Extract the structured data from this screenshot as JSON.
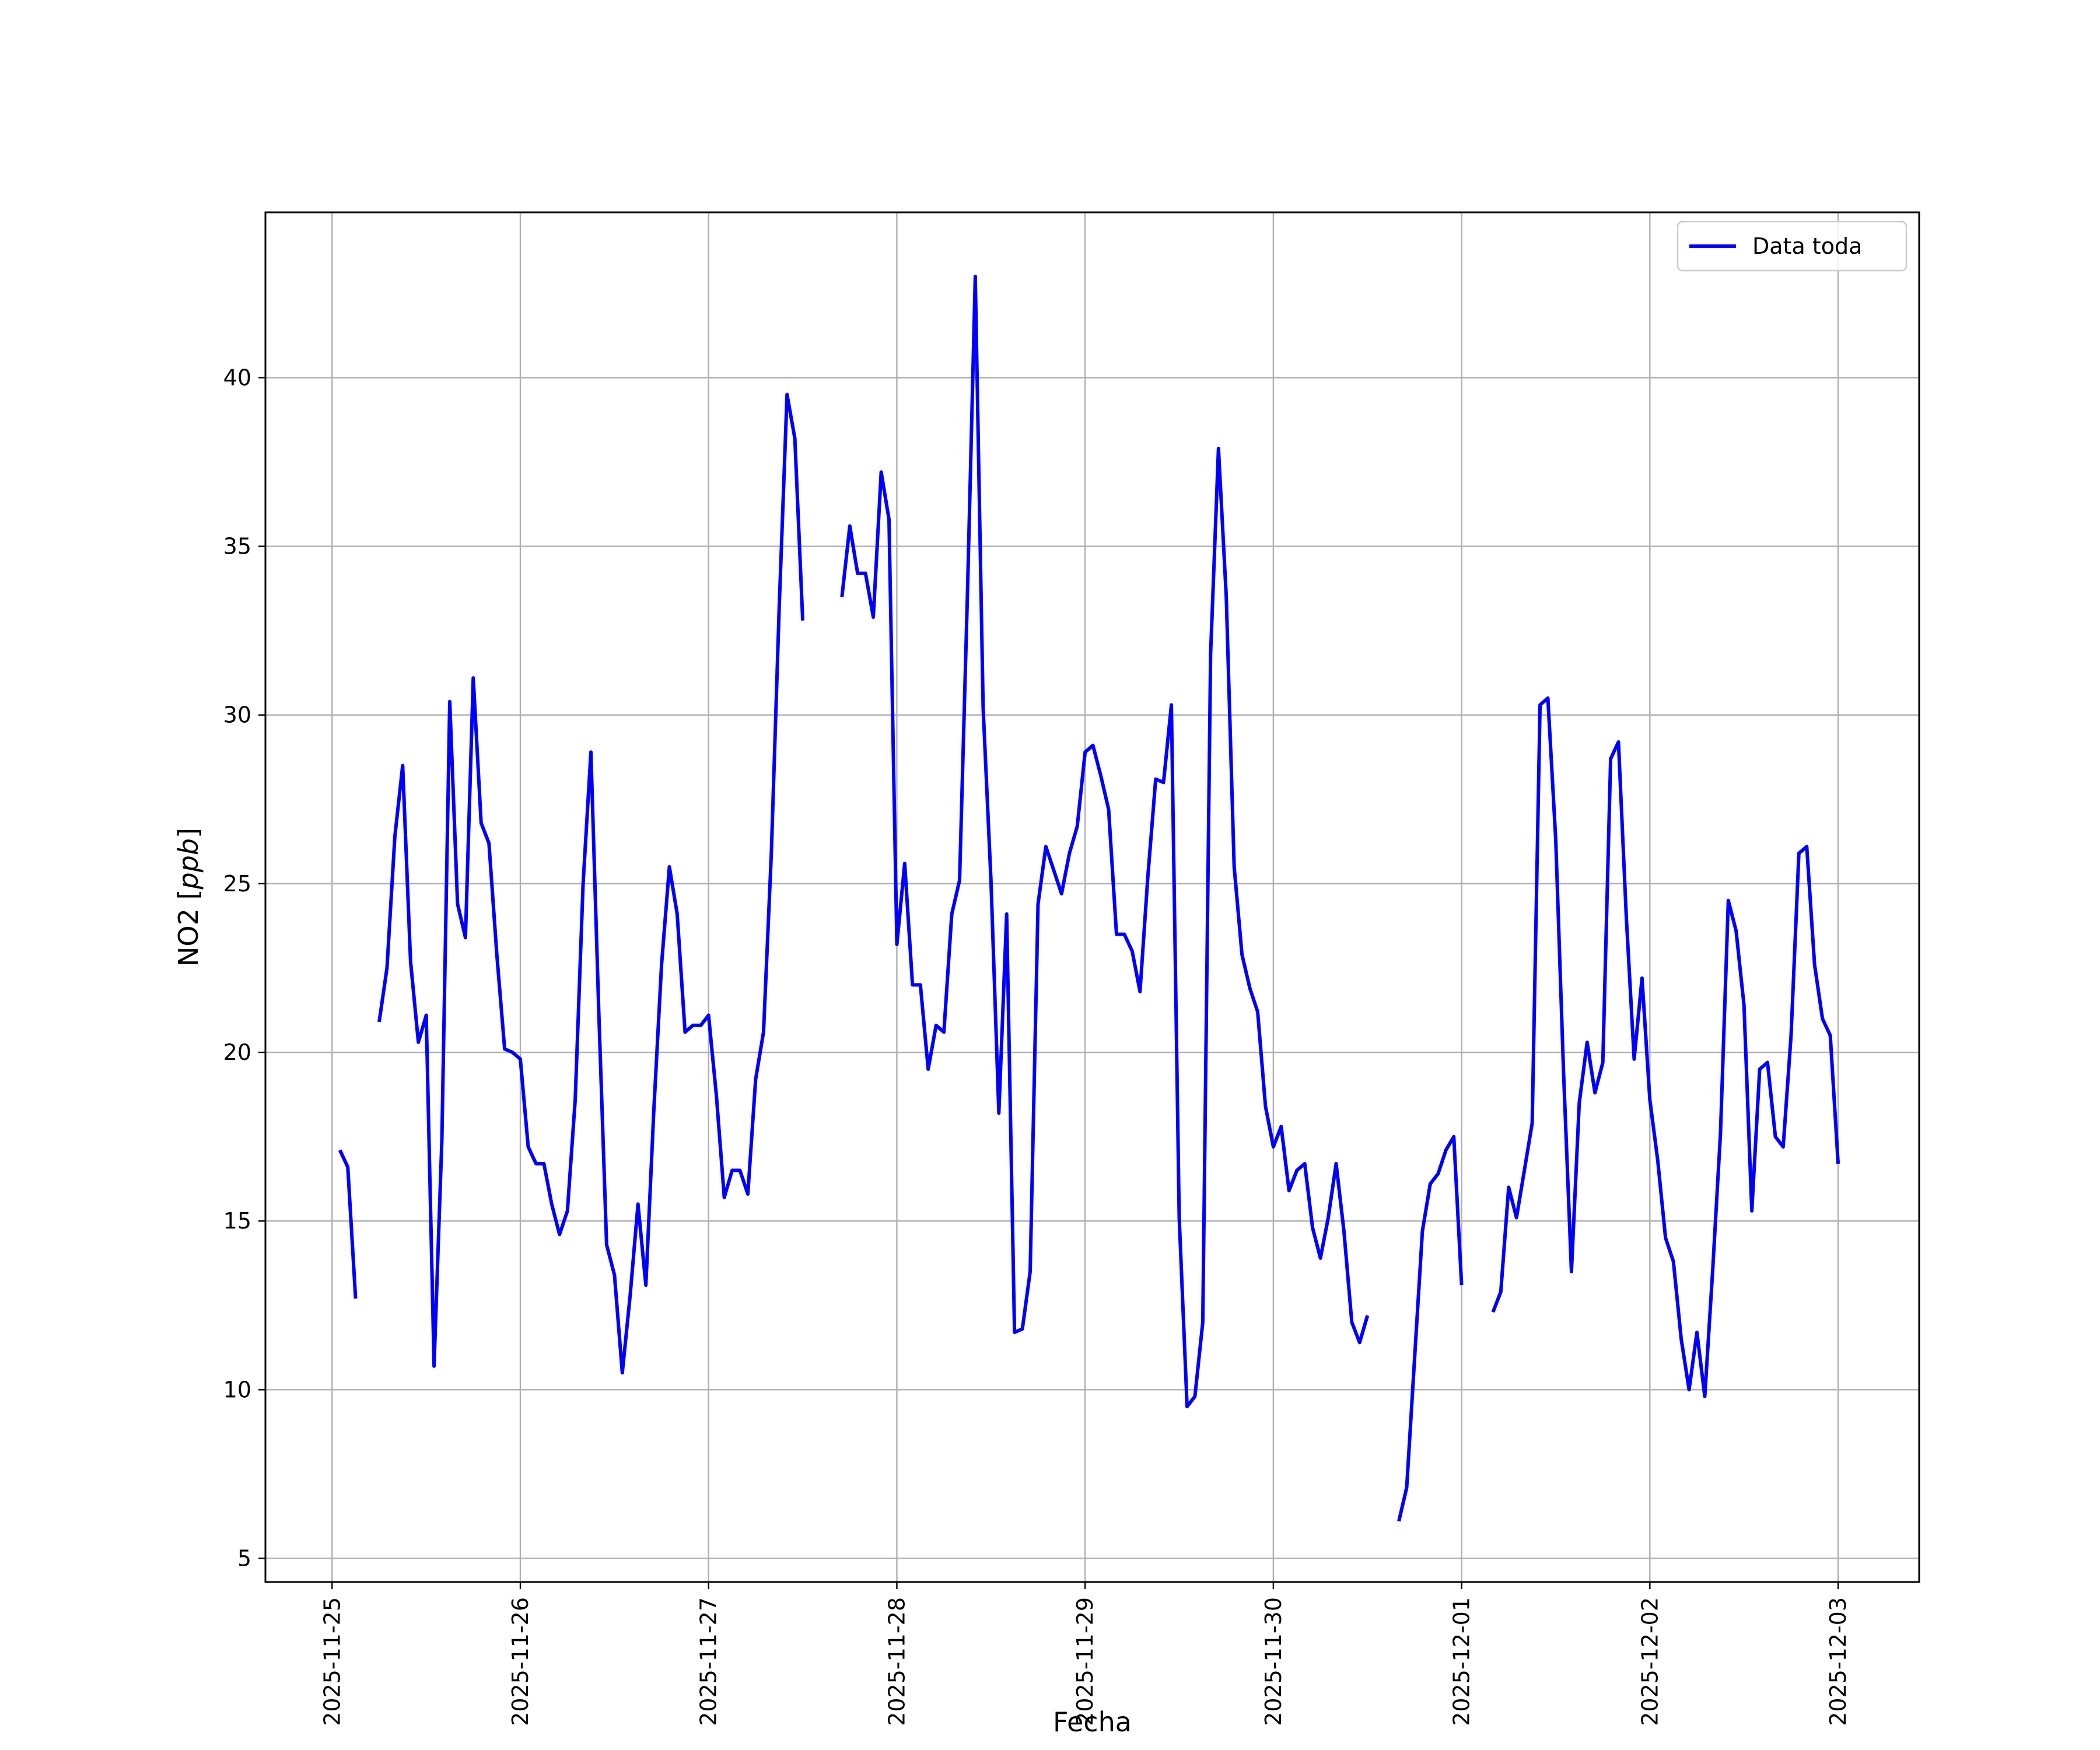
{
  "chart_data": {
    "type": "line",
    "title": "",
    "xlabel": "Fecha",
    "ylabel": "NO2 [ppb]",
    "ylabel_parts": {
      "prefix": "NO2 [",
      "italic": "ppb",
      "suffix": "]"
    },
    "x_unit": "days",
    "xlim": [
      "2025-11-24T15:30",
      "2025-12-03T10:20"
    ],
    "ylim": [
      4.3,
      44.9
    ],
    "x_ticks": [
      "2025-11-25",
      "2025-11-26",
      "2025-11-27",
      "2025-11-28",
      "2025-11-29",
      "2025-11-30",
      "2025-12-01",
      "2025-12-02",
      "2025-12-03"
    ],
    "y_ticks": [
      5,
      10,
      15,
      20,
      25,
      30,
      35,
      40
    ],
    "y_tick_labels": [
      "5",
      "10",
      "15",
      "20",
      "25",
      "30",
      "35",
      "40"
    ],
    "grid": true,
    "legend": {
      "position": "top-right",
      "entries": [
        "Data toda"
      ]
    },
    "series": [
      {
        "name": "Data toda",
        "color": "#0000ff",
        "segments": [
          [
            [
              "2025-11-25T01:00",
              17.1
            ],
            [
              "2025-11-25T02:00",
              16.6
            ],
            [
              "2025-11-25T03:00",
              12.7
            ]
          ],
          [
            [
              "2025-11-25T06:00",
              20.9
            ],
            [
              "2025-11-25T07:00",
              22.5
            ],
            [
              "2025-11-25T08:00",
              26.4
            ],
            [
              "2025-11-25T09:00",
              28.5
            ],
            [
              "2025-11-25T10:00",
              22.7
            ],
            [
              "2025-11-25T11:00",
              20.3
            ],
            [
              "2025-11-25T12:00",
              21.1
            ],
            [
              "2025-11-25T13:00",
              10.7
            ],
            [
              "2025-11-25T14:00",
              17.4
            ],
            [
              "2025-11-25T15:00",
              30.4
            ],
            [
              "2025-11-25T16:00",
              24.4
            ],
            [
              "2025-11-25T17:00",
              23.4
            ],
            [
              "2025-11-25T18:00",
              31.1
            ],
            [
              "2025-11-25T19:00",
              26.8
            ],
            [
              "2025-11-25T20:00",
              26.2
            ],
            [
              "2025-11-25T21:00",
              22.9
            ],
            [
              "2025-11-25T22:00",
              20.1
            ],
            [
              "2025-11-25T23:00",
              20.0
            ],
            [
              "2025-11-26T00:00",
              19.8
            ],
            [
              "2025-11-26T01:00",
              17.2
            ],
            [
              "2025-11-26T02:00",
              16.7
            ],
            [
              "2025-11-26T03:00",
              16.7
            ],
            [
              "2025-11-26T04:00",
              15.5
            ],
            [
              "2025-11-26T05:00",
              14.6
            ],
            [
              "2025-11-26T06:00",
              15.3
            ],
            [
              "2025-11-26T07:00",
              18.6
            ],
            [
              "2025-11-26T08:00",
              25.0
            ],
            [
              "2025-11-26T09:00",
              28.9
            ],
            [
              "2025-11-26T10:00",
              21.2
            ],
            [
              "2025-11-26T11:00",
              14.3
            ],
            [
              "2025-11-26T12:00",
              13.4
            ],
            [
              "2025-11-26T13:00",
              10.5
            ],
            [
              "2025-11-26T14:00",
              12.8
            ],
            [
              "2025-11-26T15:00",
              15.5
            ],
            [
              "2025-11-26T16:00",
              13.1
            ],
            [
              "2025-11-26T17:00",
              18.2
            ],
            [
              "2025-11-26T18:00",
              22.6
            ],
            [
              "2025-11-26T19:00",
              25.5
            ],
            [
              "2025-11-26T20:00",
              24.1
            ],
            [
              "2025-11-26T21:00",
              20.6
            ],
            [
              "2025-11-26T22:00",
              20.8
            ],
            [
              "2025-11-26T23:00",
              20.8
            ],
            [
              "2025-11-27T00:00",
              21.1
            ],
            [
              "2025-11-27T01:00",
              18.7
            ],
            [
              "2025-11-27T02:00",
              15.7
            ],
            [
              "2025-11-27T03:00",
              16.5
            ],
            [
              "2025-11-27T04:00",
              16.5
            ],
            [
              "2025-11-27T05:00",
              15.8
            ],
            [
              "2025-11-27T06:00",
              19.2
            ],
            [
              "2025-11-27T07:00",
              20.6
            ],
            [
              "2025-11-27T08:00",
              25.9
            ],
            [
              "2025-11-27T09:00",
              33.2
            ],
            [
              "2025-11-27T10:00",
              39.5
            ],
            [
              "2025-11-27T11:00",
              38.2
            ],
            [
              "2025-11-27T12:00",
              32.8
            ]
          ],
          [
            [
              "2025-11-27T17:00",
              33.5
            ],
            [
              "2025-11-27T18:00",
              35.6
            ],
            [
              "2025-11-27T19:00",
              34.2
            ],
            [
              "2025-11-27T20:00",
              34.2
            ],
            [
              "2025-11-27T21:00",
              32.9
            ],
            [
              "2025-11-27T22:00",
              37.2
            ],
            [
              "2025-11-27T23:00",
              35.8
            ],
            [
              "2025-11-28T00:00",
              23.2
            ],
            [
              "2025-11-28T01:00",
              25.6
            ],
            [
              "2025-11-28T02:00",
              22.0
            ],
            [
              "2025-11-28T03:00",
              22.0
            ],
            [
              "2025-11-28T04:00",
              19.5
            ],
            [
              "2025-11-28T05:00",
              20.8
            ],
            [
              "2025-11-28T06:00",
              20.6
            ],
            [
              "2025-11-28T07:00",
              24.1
            ],
            [
              "2025-11-28T08:00",
              25.1
            ],
            [
              "2025-11-28T09:00",
              33.6
            ],
            [
              "2025-11-28T10:00",
              43.0
            ],
            [
              "2025-11-28T11:00",
              30.2
            ],
            [
              "2025-11-28T12:00",
              25.1
            ],
            [
              "2025-11-28T13:00",
              18.2
            ],
            [
              "2025-11-28T14:00",
              24.1
            ],
            [
              "2025-11-28T15:00",
              11.7
            ],
            [
              "2025-11-28T16:00",
              11.8
            ],
            [
              "2025-11-28T17:00",
              13.5
            ],
            [
              "2025-11-28T18:00",
              24.4
            ],
            [
              "2025-11-28T19:00",
              26.1
            ],
            [
              "2025-11-28T20:00",
              25.4
            ],
            [
              "2025-11-28T21:00",
              24.7
            ],
            [
              "2025-11-28T22:00",
              25.9
            ],
            [
              "2025-11-28T23:00",
              26.7
            ],
            [
              "2025-11-29T00:00",
              28.9
            ],
            [
              "2025-11-29T01:00",
              29.1
            ],
            [
              "2025-11-29T02:00",
              28.2
            ],
            [
              "2025-11-29T03:00",
              27.2
            ],
            [
              "2025-11-29T04:00",
              23.5
            ],
            [
              "2025-11-29T05:00",
              23.5
            ],
            [
              "2025-11-29T06:00",
              23.0
            ],
            [
              "2025-11-29T07:00",
              21.8
            ],
            [
              "2025-11-29T08:00",
              25.2
            ],
            [
              "2025-11-29T09:00",
              28.1
            ],
            [
              "2025-11-29T10:00",
              28.0
            ],
            [
              "2025-11-29T11:00",
              30.3
            ],
            [
              "2025-11-29T12:00",
              15.1
            ],
            [
              "2025-11-29T13:00",
              9.5
            ],
            [
              "2025-11-29T14:00",
              9.8
            ],
            [
              "2025-11-29T15:00",
              12.0
            ],
            [
              "2025-11-29T16:00",
              31.8
            ],
            [
              "2025-11-29T17:00",
              37.9
            ],
            [
              "2025-11-29T18:00",
              33.5
            ],
            [
              "2025-11-29T19:00",
              25.5
            ],
            [
              "2025-11-29T20:00",
              22.9
            ],
            [
              "2025-11-29T21:00",
              21.9
            ],
            [
              "2025-11-29T22:00",
              21.2
            ],
            [
              "2025-11-29T23:00",
              18.4
            ],
            [
              "2025-11-30T00:00",
              17.2
            ],
            [
              "2025-11-30T01:00",
              17.8
            ],
            [
              "2025-11-30T02:00",
              15.9
            ],
            [
              "2025-11-30T03:00",
              16.5
            ],
            [
              "2025-11-30T04:00",
              16.7
            ],
            [
              "2025-11-30T05:00",
              14.8
            ],
            [
              "2025-11-30T06:00",
              13.9
            ],
            [
              "2025-11-30T07:00",
              15.1
            ],
            [
              "2025-11-30T08:00",
              16.7
            ],
            [
              "2025-11-30T09:00",
              14.7
            ],
            [
              "2025-11-30T10:00",
              12.0
            ],
            [
              "2025-11-30T11:00",
              11.4
            ],
            [
              "2025-11-30T12:00",
              12.2
            ]
          ],
          [
            [
              "2025-11-30T16:00",
              6.1
            ],
            [
              "2025-11-30T17:00",
              7.1
            ],
            [
              "2025-11-30T18:00",
              10.9
            ],
            [
              "2025-11-30T19:00",
              14.7
            ],
            [
              "2025-11-30T20:00",
              16.1
            ],
            [
              "2025-11-30T21:00",
              16.4
            ],
            [
              "2025-11-30T22:00",
              17.1
            ],
            [
              "2025-11-30T23:00",
              17.5
            ],
            [
              "2025-12-01T00:00",
              13.1
            ]
          ],
          [
            [
              "2025-12-01T04:00",
              12.3
            ],
            [
              "2025-12-01T05:00",
              12.9
            ],
            [
              "2025-12-01T06:00",
              16.0
            ],
            [
              "2025-12-01T07:00",
              15.1
            ],
            [
              "2025-12-01T08:00",
              16.5
            ],
            [
              "2025-12-01T09:00",
              17.9
            ],
            [
              "2025-12-01T10:00",
              30.3
            ],
            [
              "2025-12-01T11:00",
              30.5
            ],
            [
              "2025-12-01T12:00",
              26.3
            ],
            [
              "2025-12-01T13:00",
              19.4
            ],
            [
              "2025-12-01T14:00",
              13.5
            ],
            [
              "2025-12-01T15:00",
              18.5
            ],
            [
              "2025-12-01T16:00",
              20.3
            ],
            [
              "2025-12-01T17:00",
              18.8
            ],
            [
              "2025-12-01T18:00",
              19.7
            ],
            [
              "2025-12-01T19:00",
              28.7
            ],
            [
              "2025-12-01T20:00",
              29.2
            ],
            [
              "2025-12-01T21:00",
              24.0
            ],
            [
              "2025-12-01T22:00",
              19.8
            ],
            [
              "2025-12-01T23:00",
              22.2
            ],
            [
              "2025-12-02T00:00",
              18.6
            ],
            [
              "2025-12-02T01:00",
              16.8
            ],
            [
              "2025-12-02T02:00",
              14.5
            ],
            [
              "2025-12-02T03:00",
              13.8
            ],
            [
              "2025-12-02T04:00",
              11.5
            ],
            [
              "2025-12-02T05:00",
              10.0
            ],
            [
              "2025-12-02T06:00",
              11.7
            ],
            [
              "2025-12-02T07:00",
              9.8
            ],
            [
              "2025-12-02T08:00",
              13.5
            ],
            [
              "2025-12-02T09:00",
              17.6
            ],
            [
              "2025-12-02T10:00",
              24.5
            ],
            [
              "2025-12-02T11:00",
              23.6
            ],
            [
              "2025-12-02T12:00",
              21.4
            ],
            [
              "2025-12-02T13:00",
              15.3
            ],
            [
              "2025-12-02T14:00",
              19.5
            ],
            [
              "2025-12-02T15:00",
              19.7
            ],
            [
              "2025-12-02T16:00",
              17.5
            ],
            [
              "2025-12-02T17:00",
              17.2
            ],
            [
              "2025-12-02T18:00",
              20.5
            ],
            [
              "2025-12-02T19:00",
              25.9
            ],
            [
              "2025-12-02T20:00",
              26.1
            ],
            [
              "2025-12-02T21:00",
              22.6
            ],
            [
              "2025-12-02T22:00",
              21.0
            ],
            [
              "2025-12-02T23:00",
              20.5
            ],
            [
              "2025-12-03T00:00",
              16.7
            ]
          ]
        ]
      }
    ]
  }
}
